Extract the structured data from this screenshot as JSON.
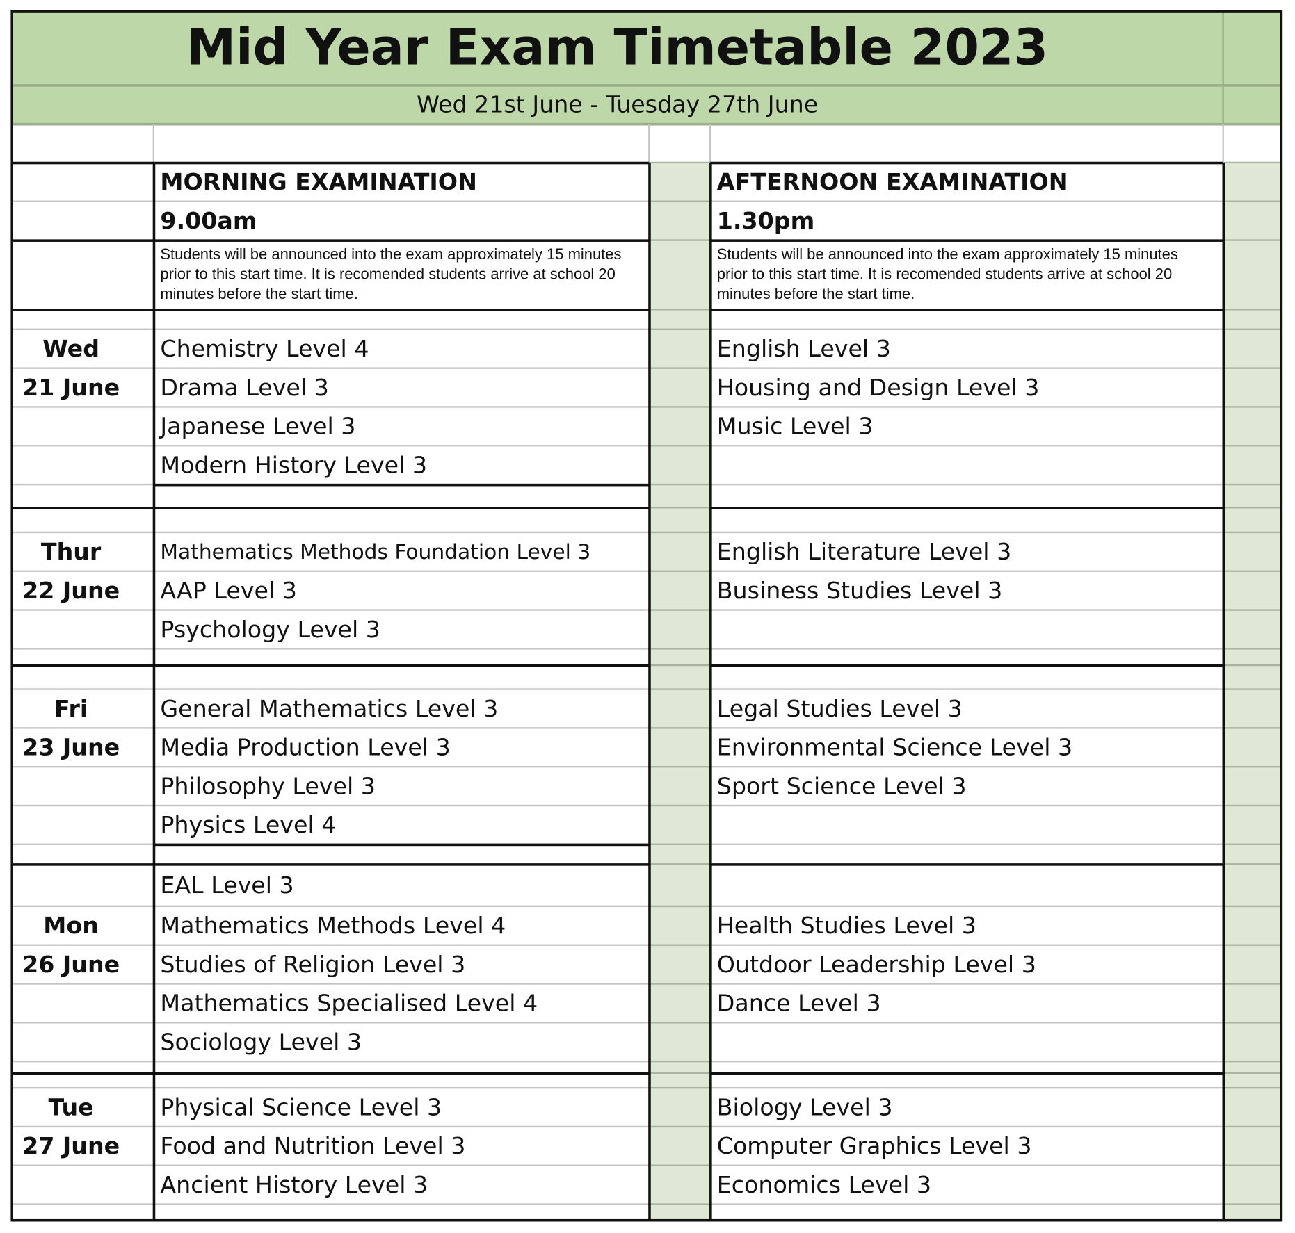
{
  "title": "Mid Year Exam Timetable 2023",
  "subtitle": "Wed 21st June  -  Tuesday 27th June",
  "morning": {
    "heading": "MORNING EXAMINATION",
    "time": "9.00am",
    "note": "Students will be announced into the exam approximately 15 minutes prior to this start time. It is recomended students arrive at school 20 minutes before the start time."
  },
  "afternoon": {
    "heading": "AFTERNOON EXAMINATION",
    "time": "1.30pm",
    "note": "Students will be announced into the exam approximately 15 minutes prior to this start time. It is recomended students arrive at school 20 minutes before the start time."
  },
  "colors": {
    "header_green": "#bdd7a9",
    "column_green": "#dfe8d5"
  },
  "days": [
    {
      "day": "Wed",
      "date": "21 June",
      "morning": [
        "Chemistry Level 4",
        "Drama Level 3",
        "Japanese Level 3",
        "Modern History Level 3"
      ],
      "afternoon": [
        "English Level 3",
        "Housing and Design Level 3",
        "Music Level 3",
        ""
      ]
    },
    {
      "day": "Thur",
      "date": "22 June",
      "morning": [
        "Mathematics Methods Foundation Level 3",
        "AAP Level 3",
        "Psychology Level 3"
      ],
      "afternoon": [
        "English Literature Level 3",
        "Business Studies Level 3",
        ""
      ]
    },
    {
      "day": "Fri",
      "date": "23 June",
      "morning": [
        "General Mathematics Level 3",
        "Media Production Level 3",
        "Philosophy Level 3",
        "Physics Level 4"
      ],
      "afternoon": [
        "Legal Studies Level 3",
        "Environmental Science Level 3",
        "Sport Science Level 3",
        ""
      ]
    },
    {
      "day": "Mon",
      "date": "26 June",
      "morning": [
        "EAL Level 3",
        "Mathematics Methods Level 4",
        "Studies of Religion Level 3",
        "Mathematics Specialised Level 4",
        "Sociology Level 3"
      ],
      "afternoon": [
        "",
        "Health Studies Level 3",
        "Outdoor Leadership Level 3",
        "Dance Level 3",
        ""
      ]
    },
    {
      "day": "Tue",
      "date": "27 June",
      "morning": [
        "Physical Science Level 3",
        "Food and Nutrition Level 3",
        "Ancient History Level 3"
      ],
      "afternoon": [
        "Biology Level 3",
        "Computer Graphics Level 3",
        "Economics Level 3"
      ]
    }
  ]
}
